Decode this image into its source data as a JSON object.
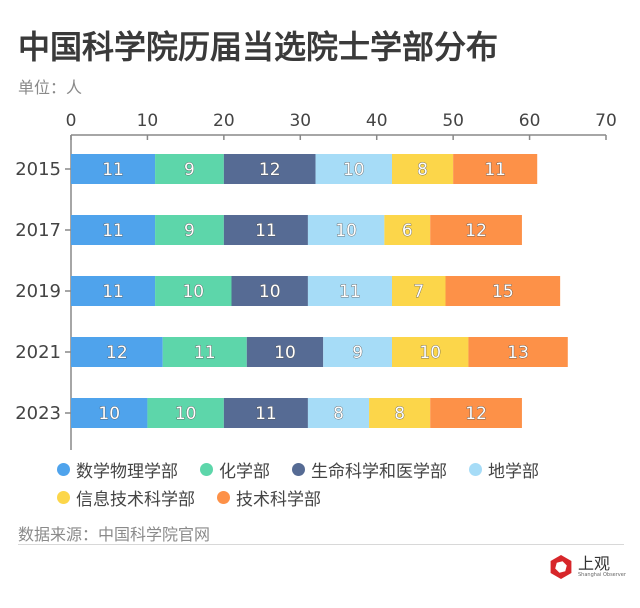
{
  "header": {
    "title": "中国科学院历届当选院士学部分布",
    "unit": "单位：人"
  },
  "chart_data": {
    "type": "bar",
    "orientation": "horizontal",
    "stacked": true,
    "title": "中国科学院历届当选院士学部分布",
    "subtitle": "单位：人",
    "xlabel": "",
    "ylabel": "",
    "xlim": [
      0,
      70
    ],
    "x_ticks": [
      "0",
      "10",
      "20",
      "30",
      "40",
      "50",
      "60",
      "70"
    ],
    "x_axis_position": "top",
    "grid": false,
    "categories": [
      "2015",
      "2017",
      "2019",
      "2021",
      "2023"
    ],
    "series": [
      {
        "name": "数学物理学部",
        "color": "#4fa3ec",
        "values": [
          11,
          11,
          11,
          12,
          10
        ]
      },
      {
        "name": "化学部",
        "color": "#5dd6aa",
        "values": [
          9,
          9,
          10,
          11,
          10
        ]
      },
      {
        "name": "生命科学和医学部",
        "color": "#566b94",
        "values": [
          12,
          11,
          10,
          10,
          11
        ]
      },
      {
        "name": "地学部",
        "color": "#a6dcf7",
        "values": [
          10,
          10,
          11,
          9,
          8
        ]
      },
      {
        "name": "信息技术科学部",
        "color": "#fcd64a",
        "values": [
          8,
          6,
          7,
          10,
          8
        ]
      },
      {
        "name": "技术科学部",
        "color": "#fd9148",
        "values": [
          11,
          12,
          15,
          13,
          12
        ]
      }
    ],
    "data_labels": true,
    "legend_position": "bottom"
  },
  "legend": {
    "rows": [
      [
        {
          "label": "数学物理学部",
          "color": "#4fa3ec"
        },
        {
          "label": "化学部",
          "color": "#5dd6aa"
        },
        {
          "label": "生命科学和医学部",
          "color": "#566b94"
        },
        {
          "label": "地学部",
          "color": "#a6dcf7"
        }
      ],
      [
        {
          "label": "信息技术科学部",
          "color": "#fcd64a"
        },
        {
          "label": "技术科学部",
          "color": "#fd9148"
        }
      ]
    ]
  },
  "footer": {
    "source": "数据来源：中国科学院官网",
    "logo_cn": "上观",
    "logo_en": "Shanghai Observer",
    "logo_color": "#d7262a"
  }
}
